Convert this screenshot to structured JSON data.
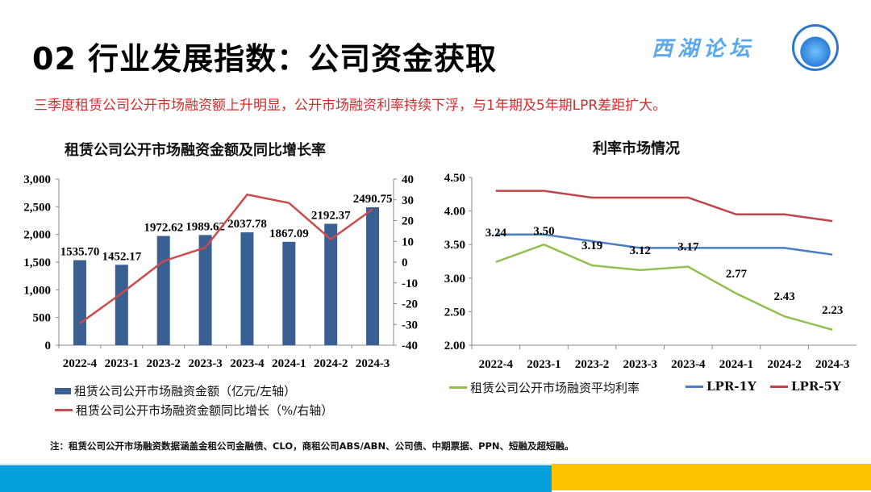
{
  "header": {
    "title": "02 行业发展指数：公司资金获取",
    "brand": "西湖论坛",
    "subtitle": "三季度租赁公司公开市场融资额上升明显，公开市场融资利率持续下浮，与1年期及5年期LPR差距扩大。"
  },
  "colors": {
    "bar": "#3a5f92",
    "growth": "#cc4b4b",
    "avg_rate": "#92c050",
    "lpr1y": "#4a7fc4",
    "lpr5y": "#c0454a",
    "footer_blue": "#059fdb",
    "footer_yellow": "#fcc300",
    "subtitle": "#d42a2a"
  },
  "chart_data": [
    {
      "type": "bar",
      "title": "租赁公司公开市场融资金额及同比增长率",
      "categories": [
        "2022-4",
        "2023-1",
        "2023-2",
        "2023-3",
        "2023-4",
        "2024-1",
        "2024-2",
        "2024-3"
      ],
      "series": [
        {
          "name": "租赁公司公开市场融资金额（亿元/左轴）",
          "type": "bar",
          "axis": "left",
          "values": [
            1535.7,
            1452.17,
            1972.62,
            1989.62,
            2037.78,
            1867.09,
            2192.37,
            2490.75
          ],
          "labels": [
            "1535.70",
            "1452.17",
            "1972.62",
            "1989.62",
            "2037.78",
            "1867.09",
            "2192.37",
            "2490.75"
          ]
        },
        {
          "name": "租赁公司公开市场融资金额同比增长（%/右轴）",
          "type": "line",
          "axis": "right",
          "values": [
            -29.5,
            -15,
            0.5,
            7,
            32.5,
            28.5,
            11,
            25.5
          ]
        }
      ],
      "ylim_left": [
        0,
        3000
      ],
      "yticks_left": [
        "0",
        "500",
        "1,000",
        "1,500",
        "2,000",
        "2,500",
        "3,000"
      ],
      "ylim_right": [
        -40,
        40
      ],
      "yticks_right": [
        "-40",
        "-30",
        "-20",
        "-10",
        "0",
        "10",
        "20",
        "30",
        "40"
      ],
      "legend": "bottom"
    },
    {
      "type": "line",
      "title": "利率市场情况",
      "categories": [
        "2022-4",
        "2023-1",
        "2023-2",
        "2023-3",
        "2023-4",
        "2024-1",
        "2024-2",
        "2024-3"
      ],
      "series": [
        {
          "name": "租赁公司公开市场融资平均利率",
          "values": [
            3.24,
            3.5,
            3.19,
            3.12,
            3.17,
            2.77,
            2.43,
            2.23
          ],
          "labels": [
            "3.24",
            "3.50",
            "3.19",
            "3.12",
            "3.17",
            "2.77",
            "2.43",
            "2.23"
          ]
        },
        {
          "name": "LPR-1Y",
          "values": [
            3.65,
            3.65,
            3.55,
            3.45,
            3.45,
            3.45,
            3.45,
            3.35
          ]
        },
        {
          "name": "LPR-5Y",
          "values": [
            4.3,
            4.3,
            4.2,
            4.2,
            4.2,
            3.95,
            3.95,
            3.85
          ]
        }
      ],
      "ylim": [
        2.0,
        4.5
      ],
      "yticks": [
        "2.00",
        "2.50",
        "3.00",
        "3.50",
        "4.00",
        "4.50"
      ],
      "legend": "bottom"
    }
  ],
  "note": "注：租赁公司公开市场融资数据涵盖金租公司金融债、CLO，商租公司ABS/ABN、公司债、中期票据、PPN、短融及超短融。"
}
